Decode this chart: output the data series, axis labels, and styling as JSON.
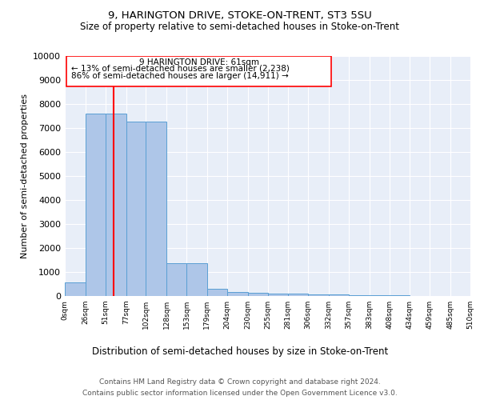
{
  "title1": "9, HARINGTON DRIVE, STOKE-ON-TRENT, ST3 5SU",
  "title2": "Size of property relative to semi-detached houses in Stoke-on-Trent",
  "xlabel": "Distribution of semi-detached houses by size in Stoke-on-Trent",
  "ylabel": "Number of semi-detached properties",
  "footnote1": "Contains HM Land Registry data © Crown copyright and database right 2024.",
  "footnote2": "Contains public sector information licensed under the Open Government Licence v3.0.",
  "annotation_title": "9 HARINGTON DRIVE: 61sqm",
  "annotation_line2": "← 13% of semi-detached houses are smaller (2,238)",
  "annotation_line3": "86% of semi-detached houses are larger (14,911) →",
  "property_size": 61,
  "bin_edges": [
    0,
    26,
    51,
    77,
    102,
    128,
    153,
    179,
    204,
    230,
    255,
    281,
    306,
    332,
    357,
    383,
    408,
    434,
    459,
    485,
    510
  ],
  "bar_heights": [
    570,
    7600,
    7600,
    7280,
    7280,
    1370,
    1370,
    310,
    165,
    130,
    100,
    90,
    70,
    55,
    45,
    35,
    25,
    15,
    10,
    5
  ],
  "bar_color": "#aec6e8",
  "bar_edge_color": "#5a9fd4",
  "red_line_color": "#ff0000",
  "grid_color": "#cccccc",
  "plot_bg_color": "#e8eef8",
  "ylim": [
    0,
    10000
  ],
  "yticks": [
    0,
    1000,
    2000,
    3000,
    4000,
    5000,
    6000,
    7000,
    8000,
    9000,
    10000
  ]
}
